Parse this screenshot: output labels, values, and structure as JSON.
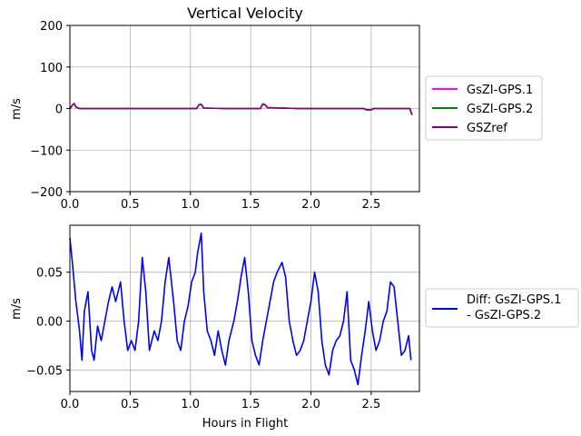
{
  "chart_data": [
    {
      "type": "line",
      "title": "Vertical Velocity",
      "xlabel": "",
      "ylabel": "m/s",
      "xlim": [
        0,
        2.9
      ],
      "ylim": [
        -200,
        200
      ],
      "xticks": [
        0.0,
        0.5,
        1.0,
        1.5,
        2.0,
        2.5
      ],
      "xtick_labels": [
        "0.0",
        "0.5",
        "1.0",
        "1.5",
        "2.0",
        "2.5"
      ],
      "yticks": [
        -200,
        -100,
        0,
        100,
        200
      ],
      "ytick_labels": [
        "−200",
        "−100",
        "0",
        "100",
        "200"
      ],
      "grid": true,
      "legend_position": "outside-right",
      "series": [
        {
          "name": "GsZI-GPS.1",
          "color": "#ff00ff",
          "x": [
            0.0,
            0.02,
            0.035,
            0.05,
            0.08,
            0.3,
            0.6,
            0.9,
            1.05,
            1.07,
            1.09,
            1.11,
            1.3,
            1.58,
            1.6,
            1.62,
            1.64,
            1.9,
            2.2,
            2.44,
            2.46,
            2.5,
            2.52,
            2.7,
            2.82,
            2.83,
            2.84
          ],
          "y": [
            0,
            8,
            12,
            4,
            0,
            0,
            0,
            0,
            0,
            9,
            10,
            1,
            0,
            0,
            11,
            9,
            2,
            0,
            0,
            0,
            -3,
            -3,
            0,
            0,
            0,
            -8,
            -15
          ]
        },
        {
          "name": "GsZI-GPS.2",
          "color": "#008000",
          "x": [
            0.0,
            0.02,
            0.035,
            0.05,
            0.08,
            0.3,
            0.6,
            0.9,
            1.05,
            1.07,
            1.09,
            1.11,
            1.3,
            1.58,
            1.6,
            1.62,
            1.64,
            1.9,
            2.2,
            2.44,
            2.46,
            2.5,
            2.52,
            2.7,
            2.82,
            2.83,
            2.84
          ],
          "y": [
            0,
            8,
            12,
            4,
            0,
            0,
            0,
            0,
            0,
            9,
            10,
            1,
            0,
            0,
            11,
            9,
            2,
            0,
            0,
            0,
            -3,
            -3,
            0,
            0,
            0,
            -8,
            -15
          ]
        },
        {
          "name": "GSZref",
          "color": "#800080",
          "x": [
            0.0,
            0.02,
            0.035,
            0.05,
            0.08,
            0.3,
            0.6,
            0.9,
            1.05,
            1.07,
            1.09,
            1.11,
            1.3,
            1.58,
            1.6,
            1.62,
            1.64,
            1.9,
            2.2,
            2.44,
            2.46,
            2.5,
            2.52,
            2.7,
            2.82,
            2.83,
            2.84
          ],
          "y": [
            0,
            8,
            12,
            4,
            0,
            0,
            0,
            0,
            0,
            9,
            10,
            1,
            0,
            0,
            11,
            9,
            2,
            0,
            0,
            0,
            -3,
            -3,
            0,
            0,
            0,
            -8,
            -15
          ]
        }
      ]
    },
    {
      "type": "line",
      "title": "",
      "xlabel": "Hours in Flight",
      "ylabel": "m/s",
      "xlim": [
        0,
        2.9
      ],
      "ylim": [
        -0.072,
        0.098
      ],
      "xticks": [
        0.0,
        0.5,
        1.0,
        1.5,
        2.0,
        2.5
      ],
      "xtick_labels": [
        "0.0",
        "0.5",
        "1.0",
        "1.5",
        "2.0",
        "2.5"
      ],
      "yticks": [
        -0.05,
        0.0,
        0.05
      ],
      "ytick_labels": [
        "−0.05",
        "0.00",
        "0.05"
      ],
      "grid": true,
      "legend_position": "outside-right",
      "series": [
        {
          "name": "Diff: GsZI-GPS.1 - GsZI-GPS.2",
          "legend_lines": [
            "Diff: GsZI-GPS.1",
            "- GsZI-GPS.2"
          ],
          "color": "#0000ff",
          "x": [
            0.0,
            0.02,
            0.05,
            0.08,
            0.1,
            0.12,
            0.15,
            0.18,
            0.2,
            0.23,
            0.26,
            0.29,
            0.32,
            0.35,
            0.38,
            0.42,
            0.45,
            0.48,
            0.51,
            0.54,
            0.57,
            0.6,
            0.63,
            0.66,
            0.7,
            0.73,
            0.76,
            0.79,
            0.82,
            0.86,
            0.89,
            0.92,
            0.95,
            0.98,
            1.01,
            1.04,
            1.06,
            1.09,
            1.11,
            1.14,
            1.17,
            1.2,
            1.23,
            1.26,
            1.29,
            1.32,
            1.36,
            1.39,
            1.42,
            1.45,
            1.48,
            1.51,
            1.54,
            1.57,
            1.6,
            1.63,
            1.66,
            1.69,
            1.72,
            1.76,
            1.79,
            1.82,
            1.85,
            1.88,
            1.91,
            1.94,
            1.97,
            2.0,
            2.03,
            2.06,
            2.09,
            2.12,
            2.15,
            2.18,
            2.21,
            2.24,
            2.27,
            2.3,
            2.33,
            2.36,
            2.39,
            2.42,
            2.45,
            2.48,
            2.51,
            2.54,
            2.57,
            2.6,
            2.63,
            2.66,
            2.69,
            2.72,
            2.75,
            2.78,
            2.81,
            2.83
          ],
          "y": [
            0.085,
            0.06,
            0.02,
            -0.01,
            -0.04,
            0.01,
            0.03,
            -0.03,
            -0.04,
            -0.005,
            -0.02,
            0.0,
            0.02,
            0.035,
            0.02,
            0.04,
            0.0,
            -0.03,
            -0.02,
            -0.03,
            0.0,
            0.065,
            0.03,
            -0.03,
            -0.01,
            -0.02,
            0.0,
            0.04,
            0.065,
            0.02,
            -0.02,
            -0.03,
            0.0,
            0.015,
            0.04,
            0.05,
            0.07,
            0.09,
            0.03,
            -0.01,
            -0.02,
            -0.035,
            -0.01,
            -0.03,
            -0.045,
            -0.02,
            0.0,
            0.02,
            0.045,
            0.065,
            0.03,
            -0.02,
            -0.035,
            -0.045,
            -0.02,
            0.0,
            0.02,
            0.04,
            0.05,
            0.06,
            0.045,
            0.0,
            -0.02,
            -0.035,
            -0.03,
            -0.02,
            0.0,
            0.02,
            0.05,
            0.03,
            -0.02,
            -0.045,
            -0.055,
            -0.03,
            -0.02,
            -0.015,
            0.0,
            0.03,
            -0.04,
            -0.05,
            -0.065,
            -0.035,
            -0.01,
            0.02,
            -0.01,
            -0.03,
            -0.02,
            0.0,
            0.01,
            0.04,
            0.035,
            0.0,
            -0.035,
            -0.03,
            -0.015,
            -0.04
          ]
        }
      ]
    }
  ]
}
